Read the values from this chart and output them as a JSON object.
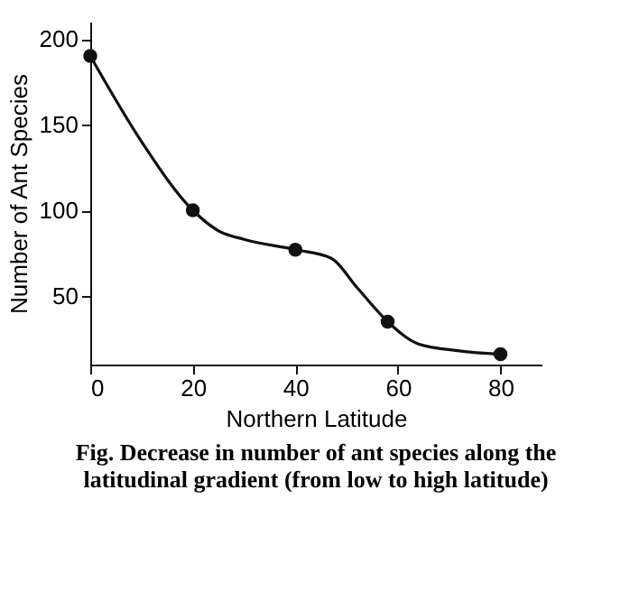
{
  "chart_data": {
    "type": "line",
    "xlabel": "Northern Latitude",
    "ylabel": "Number of Ant Species",
    "series": [
      {
        "type": "line",
        "color": "#111111",
        "x": [
          0,
          10,
          20,
          25,
          30,
          40,
          47,
          52,
          58,
          64,
          72,
          80
        ],
        "values": [
          190,
          140,
          100,
          88,
          83,
          77,
          72,
          55,
          35,
          22,
          18,
          16
        ],
        "marker": "none"
      },
      {
        "type": "scatter",
        "color": "#111111",
        "x": [
          0,
          20,
          40,
          58,
          80
        ],
        "values": [
          190,
          100,
          77,
          35,
          16
        ],
        "marker": "circle"
      }
    ],
    "xlim": [
      0,
      88
    ],
    "xticks": [
      0,
      20,
      40,
      60,
      80
    ],
    "ylim": [
      10,
      210
    ],
    "yticks": [
      50,
      100,
      150,
      200
    ],
    "grid": false,
    "line_style": "solid",
    "annotations": [
      "Fig. Decrease in number of ant species along the latitudinal gradient (from low to high latitude)"
    ]
  }
}
